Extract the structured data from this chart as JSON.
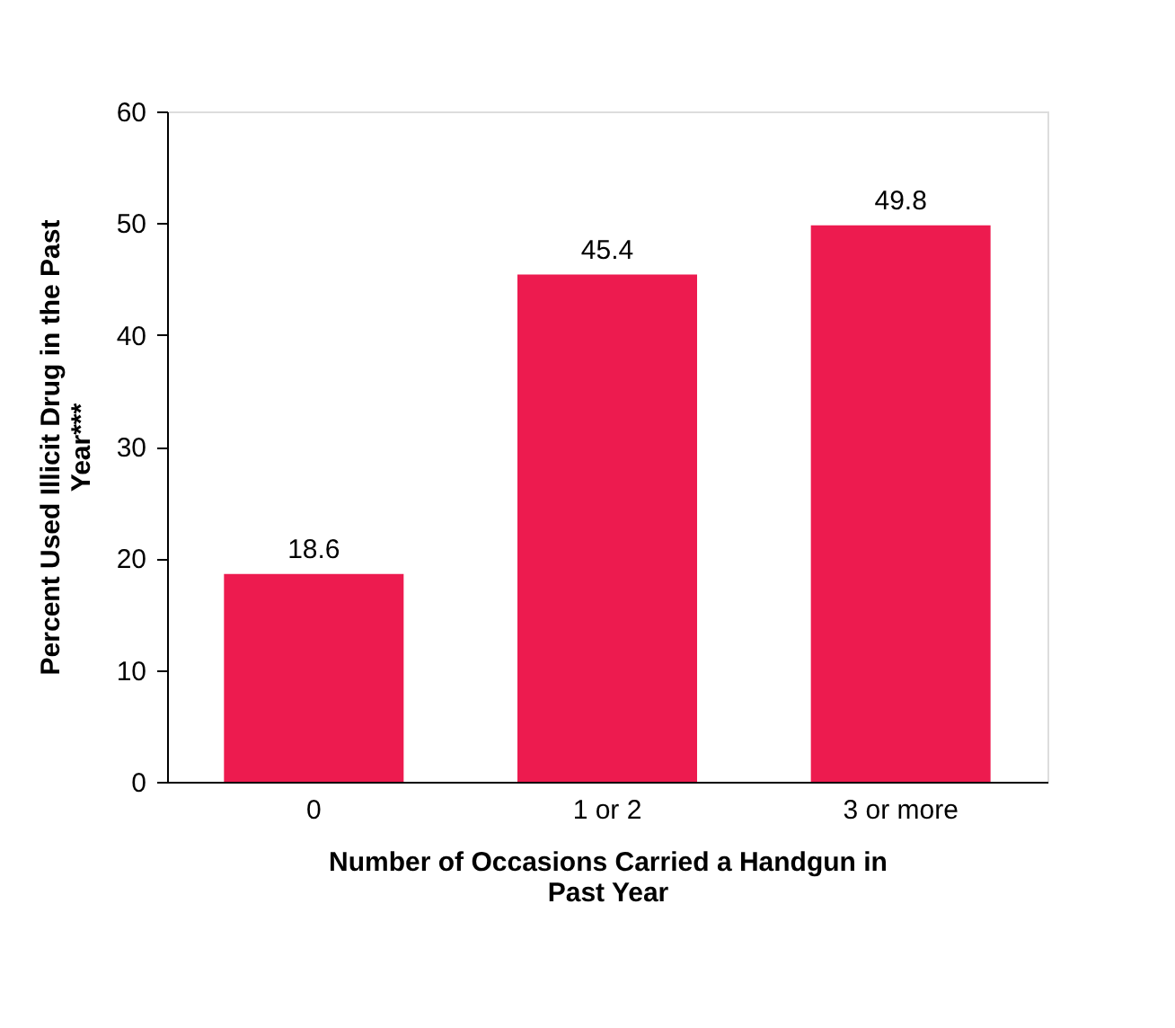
{
  "chart_data": {
    "type": "bar",
    "xlabel": "Number of Occasions Carried a Handgun in Past Year",
    "ylabel": "Percent Used Illicit Drug in the Past Year***",
    "categories": [
      "0",
      "1 or 2",
      "3 or more"
    ],
    "values": [
      18.6,
      45.4,
      49.8
    ],
    "color": "#ed1b4f",
    "ylim": [
      0,
      60
    ],
    "yticks": [
      0,
      10,
      20,
      30,
      40,
      50,
      60
    ],
    "data_labels": true,
    "grid": false
  }
}
